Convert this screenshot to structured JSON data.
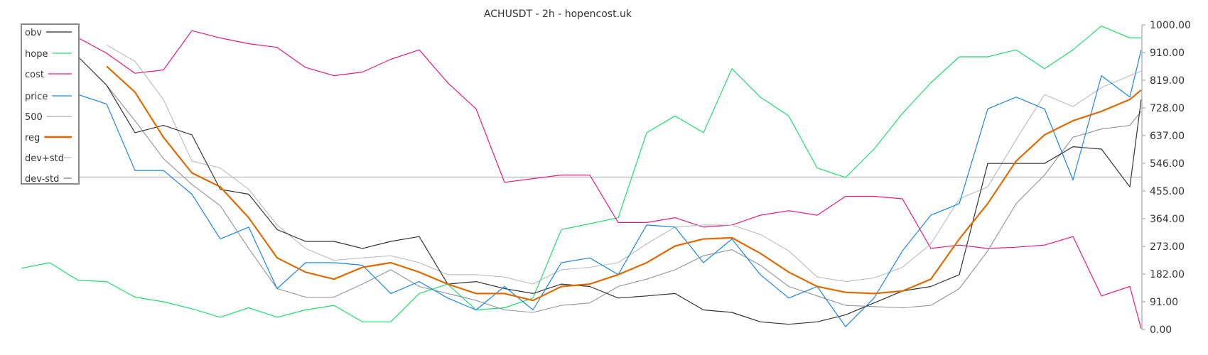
{
  "chart_data": {
    "type": "line",
    "title": "ACHUSDT - 2h - hopencost.uk",
    "xlabel": "",
    "ylabel": "",
    "ylim": [
      0,
      1000
    ],
    "y_ticks": [
      "0.00",
      "91.00",
      "182.00",
      "273.00",
      "364.00",
      "455.00",
      "546.00",
      "637.00",
      "728.00",
      "819.00",
      "910.00",
      "1000.00"
    ],
    "y_axis_position": "right",
    "grid": false,
    "legend_position": "top-left",
    "x": [
      0,
      1,
      2,
      3,
      4,
      5,
      6,
      7,
      8,
      9,
      10,
      11,
      12,
      13,
      14,
      15,
      16,
      17,
      18,
      19,
      20,
      21,
      22,
      23,
      24,
      25,
      26,
      27,
      28,
      29,
      30,
      31,
      32,
      33,
      34,
      35,
      36,
      37,
      38,
      39,
      39.4
    ],
    "series": [
      {
        "name": "obv",
        "color": "#333333",
        "width": 1.2,
        "values": [
          918,
          880,
          895,
          802,
          646,
          670,
          639,
          460,
          444,
          328,
          289,
          289,
          266,
          289,
          305,
          149,
          157,
          134,
          118,
          149,
          141,
          103,
          110,
          118,
          64,
          56,
          25,
          17,
          25,
          48,
          87,
          126,
          141,
          180,
          545,
          545,
          545,
          600,
          592,
          468,
          755
        ]
      },
      {
        "name": "hope",
        "color": "#1fdc6e",
        "width": 1.2,
        "values": [
          201,
          219,
          161,
          157,
          106,
          91,
          68,
          40,
          71,
          40,
          64,
          79,
          25,
          25,
          118,
          149,
          64,
          71,
          103,
          328,
          347,
          367,
          646,
          701,
          646,
          856,
          763,
          701,
          530,
          499,
          592,
          709,
          810,
          895,
          895,
          918,
          856,
          918,
          996,
          957,
          957
        ]
      },
      {
        "name": "cost",
        "color": "#e8197f",
        "width": 1.2,
        "values": [
          662,
          841,
          957,
          907,
          841,
          852,
          981,
          957,
          938,
          926,
          860,
          833,
          845,
          887,
          918,
          810,
          724,
          483,
          495,
          507,
          507,
          351,
          351,
          367,
          336,
          343,
          375,
          390,
          375,
          437,
          437,
          429,
          266,
          277,
          266,
          270,
          277,
          305,
          110,
          141,
          2
        ]
      },
      {
        "name": "price",
        "color": "#1a86e8",
        "width": 1.2,
        "values": [
          779,
          775,
          771,
          740,
          522,
          522,
          444,
          297,
          336,
          134,
          219,
          219,
          211,
          118,
          157,
          103,
          64,
          141,
          64,
          219,
          235,
          180,
          343,
          336,
          219,
          297,
          180,
          103,
          141,
          9,
          103,
          258,
          375,
          413,
          724,
          763,
          724,
          491,
          833,
          763,
          918
        ]
      },
      {
        "name": "500",
        "color": "#c4c4c4",
        "width": 1.5,
        "values": [
          500,
          500,
          500,
          500,
          500,
          500,
          500,
          500,
          500,
          500,
          500,
          500,
          500,
          500,
          500,
          500,
          500,
          500,
          500,
          500,
          500,
          500,
          500,
          500,
          500,
          500,
          500,
          500,
          500,
          500,
          500,
          500,
          500,
          500,
          500,
          500,
          500,
          500,
          500,
          500,
          500
        ]
      },
      {
        "name": "reg",
        "color": "#e06a00",
        "width": 2.2,
        "values": [
          null,
          null,
          null,
          864,
          779,
          631,
          514,
          468,
          367,
          235,
          188,
          165,
          204,
          219,
          188,
          149,
          118,
          118,
          95,
          141,
          149,
          180,
          219,
          274,
          297,
          301,
          250,
          188,
          141,
          122,
          118,
          126,
          165,
          297,
          413,
          553,
          639,
          685,
          716,
          755,
          786
        ]
      },
      {
        "name": "dev+std",
        "color": "#b4bbc2",
        "width": 1.1,
        "values": [
          null,
          null,
          null,
          934,
          880,
          755,
          553,
          530,
          460,
          343,
          266,
          227,
          235,
          242,
          219,
          180,
          180,
          172,
          149,
          196,
          204,
          219,
          281,
          336,
          343,
          343,
          312,
          258,
          172,
          157,
          169,
          204,
          281,
          429,
          468,
          623,
          771,
          732,
          794,
          833,
          848
        ]
      },
      {
        "name": "dev-std",
        "color": "#8a969f",
        "width": 1.1,
        "values": [
          null,
          null,
          null,
          802,
          685,
          561,
          476,
          406,
          266,
          134,
          106,
          106,
          149,
          196,
          141,
          118,
          95,
          64,
          56,
          79,
          87,
          141,
          165,
          196,
          242,
          262,
          211,
          141,
          110,
          79,
          75,
          71,
          79,
          134,
          258,
          413,
          507,
          631,
          658,
          670,
          716
        ]
      }
    ],
    "legend_colors": {
      "obv": "#777777",
      "hope": "#7be3a8",
      "cost": "#ee70b0",
      "price": "#6fb3ee",
      "500": "#c8c8c8",
      "reg": "#d96400",
      "dev+std": "#d0d5da",
      "dev-std": "#a2acb4"
    }
  }
}
